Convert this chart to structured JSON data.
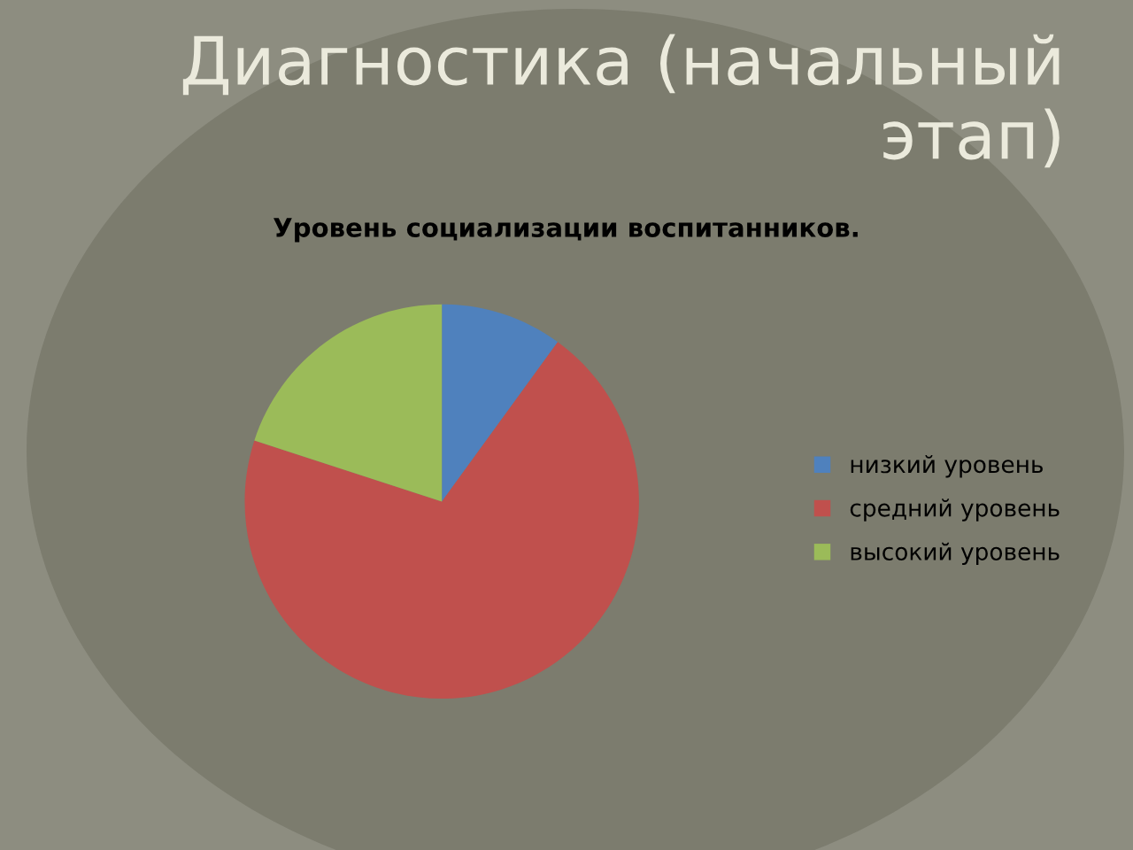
{
  "chart_data": {
    "type": "pie",
    "title": "Диагностика (начальный этап)",
    "subtitle": "Уровень социализации воспитанников.",
    "categories": [
      "низкий уровень",
      "средний уровень",
      "высокий уровень"
    ],
    "values": [
      10,
      70,
      20
    ],
    "colors": [
      "#4f81bd",
      "#c0504d",
      "#9bbb59"
    ],
    "legend": "right"
  }
}
